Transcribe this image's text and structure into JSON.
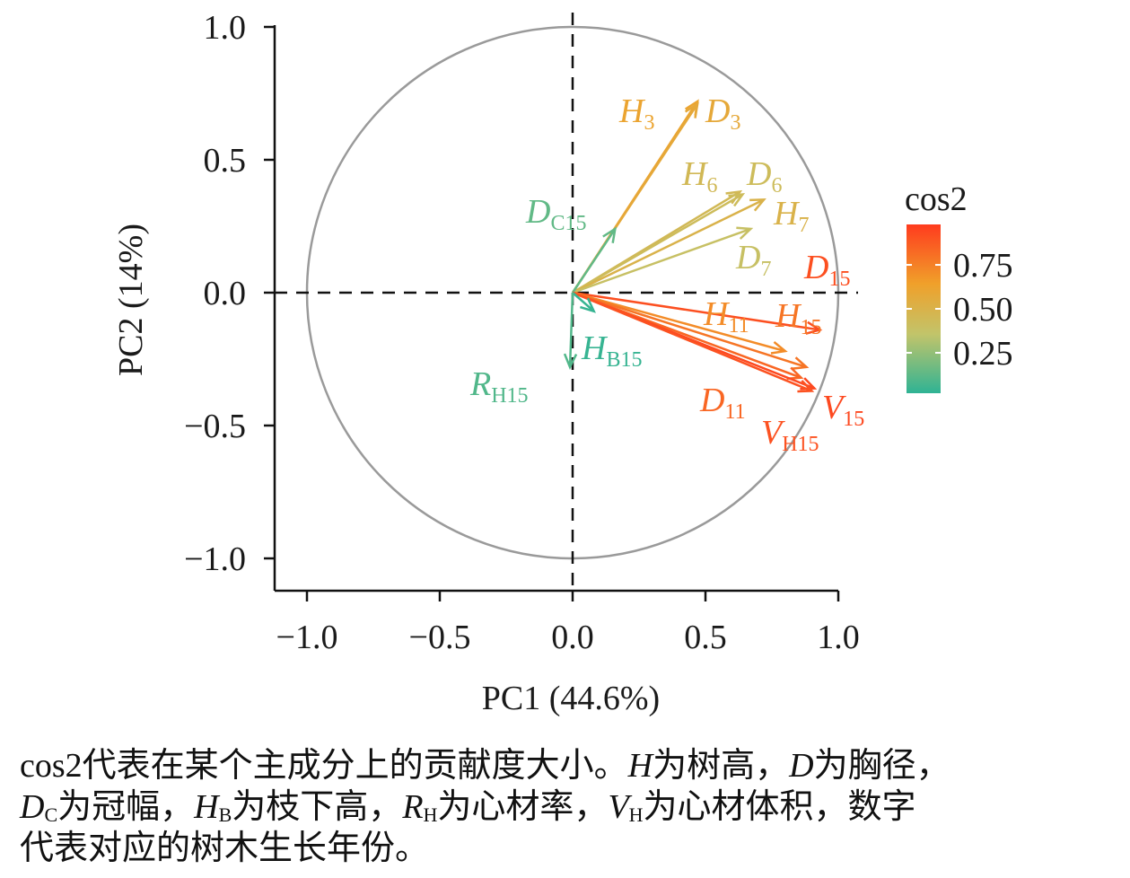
{
  "chart_data": {
    "type": "biplot",
    "xlabel": "PC1 (44.6%)",
    "ylabel": "PC2 (14%)",
    "xlim": [
      -1.1,
      1.0
    ],
    "ylim": [
      -1.1,
      1.0
    ],
    "xticks": [
      -1.0,
      -0.5,
      0.0,
      0.5,
      1.0
    ],
    "yticks": [
      -1.0,
      -0.5,
      0.0,
      0.5,
      1.0
    ],
    "xtick_labels": [
      "−1.0",
      "−0.5",
      "0.0",
      "0.5",
      "1.0"
    ],
    "ytick_labels": [
      "1.0",
      "0.5",
      "0.0",
      "−0.5",
      "−1.0"
    ],
    "unit_circle": true,
    "reference_lines": "dashed lines at x=0 and y=0",
    "color_legend": {
      "title": "cos2",
      "ticks": [
        "0.75",
        "0.50",
        "0.25"
      ],
      "tick_values": [
        0.75,
        0.5,
        0.25
      ],
      "colors_low_to_high": [
        "#2fb394",
        "#c2c46a",
        "#f0a02a",
        "#ff3b1e"
      ]
    },
    "variables": [
      {
        "main": "H",
        "sub": "3",
        "x": 0.47,
        "y": 0.72,
        "cos2": 0.62
      },
      {
        "main": "D",
        "sub": "3",
        "x": 0.47,
        "y": 0.71,
        "cos2": 0.58
      },
      {
        "main": "H",
        "sub": "6",
        "x": 0.63,
        "y": 0.38,
        "cos2": 0.45
      },
      {
        "main": "D",
        "sub": "6",
        "x": 0.64,
        "y": 0.37,
        "cos2": 0.42
      },
      {
        "main": "H",
        "sub": "7",
        "x": 0.72,
        "y": 0.35,
        "cos2": 0.5
      },
      {
        "main": "D",
        "sub": "7",
        "x": 0.67,
        "y": 0.24,
        "cos2": 0.38
      },
      {
        "main": "D",
        "sub": "C15",
        "x": 0.16,
        "y": 0.24,
        "cos2": 0.12
      },
      {
        "main": "D",
        "sub": "15",
        "x": 0.93,
        "y": -0.14,
        "cos2": 0.93
      },
      {
        "main": "H",
        "sub": "11",
        "x": 0.8,
        "y": -0.22,
        "cos2": 0.72
      },
      {
        "main": "H",
        "sub": "15",
        "x": 0.88,
        "y": -0.28,
        "cos2": 0.8
      },
      {
        "main": "D",
        "sub": "11",
        "x": 0.86,
        "y": -0.32,
        "cos2": 0.85
      },
      {
        "main": "V",
        "sub": "15",
        "x": 0.91,
        "y": -0.36,
        "cos2": 0.95
      },
      {
        "main": "V",
        "sub": "H15",
        "x": 0.9,
        "y": -0.37,
        "cos2": 0.92
      },
      {
        "main": "H",
        "sub": "B15",
        "x": 0.08,
        "y": -0.07,
        "cos2": 0.02
      },
      {
        "main": "R",
        "sub": "H15",
        "x": -0.01,
        "y": -0.28,
        "cos2": 0.08
      }
    ]
  },
  "caption": {
    "line1": [
      {
        "t": "cos2代表在某个主成分上的贡献度大小。"
      },
      {
        "t": "H",
        "i": true
      },
      {
        "t": "为树高，"
      },
      {
        "t": "D",
        "i": true
      },
      {
        "t": "为胸径，"
      }
    ],
    "line2": [
      {
        "t": "D",
        "i": true
      },
      {
        "t": "C",
        "sub": true
      },
      {
        "t": "为冠幅，"
      },
      {
        "t": "H",
        "i": true
      },
      {
        "t": "B",
        "sub": true
      },
      {
        "t": "为枝下高，"
      },
      {
        "t": "R",
        "i": true
      },
      {
        "t": "H",
        "sub": true
      },
      {
        "t": "为心材率，"
      },
      {
        "t": "V",
        "i": true
      },
      {
        "t": "H",
        "sub": true
      },
      {
        "t": "为心材体积，数字"
      }
    ],
    "line3": [
      {
        "t": "代表对应的树木生长年份。"
      }
    ]
  }
}
